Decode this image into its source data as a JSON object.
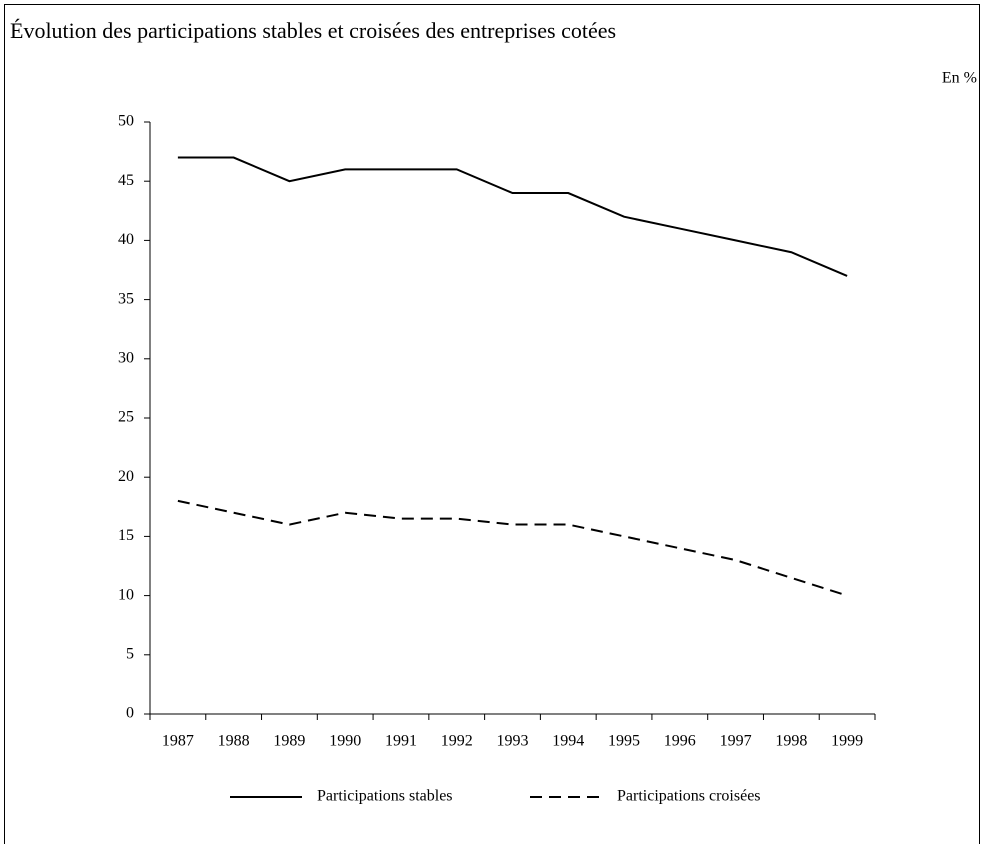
{
  "chart_data": {
    "type": "line",
    "title": "Évolution des participations stables et croisées des entreprises cotées",
    "unit_label": "En %",
    "categories": [
      "1987",
      "1988",
      "1989",
      "1990",
      "1991",
      "1992",
      "1993",
      "1994",
      "1995",
      "1996",
      "1997",
      "1998",
      "1999"
    ],
    "series": [
      {
        "name": "Participations stables",
        "color": "#000000",
        "dash": "solid",
        "values": [
          47,
          47,
          45,
          46,
          46,
          46,
          44,
          44,
          42,
          41,
          40,
          39,
          37
        ]
      },
      {
        "name": "Participations croisées",
        "color": "#000000",
        "dash": "dashed",
        "values": [
          18,
          17,
          16,
          17,
          16.5,
          16.5,
          16,
          16,
          15,
          14,
          13,
          11.5,
          10
        ]
      }
    ],
    "ylim": [
      0,
      50
    ],
    "yticks": [
      0,
      5,
      10,
      15,
      20,
      25,
      30,
      35,
      40,
      45,
      50
    ],
    "grid": false,
    "legend": "bottom"
  }
}
